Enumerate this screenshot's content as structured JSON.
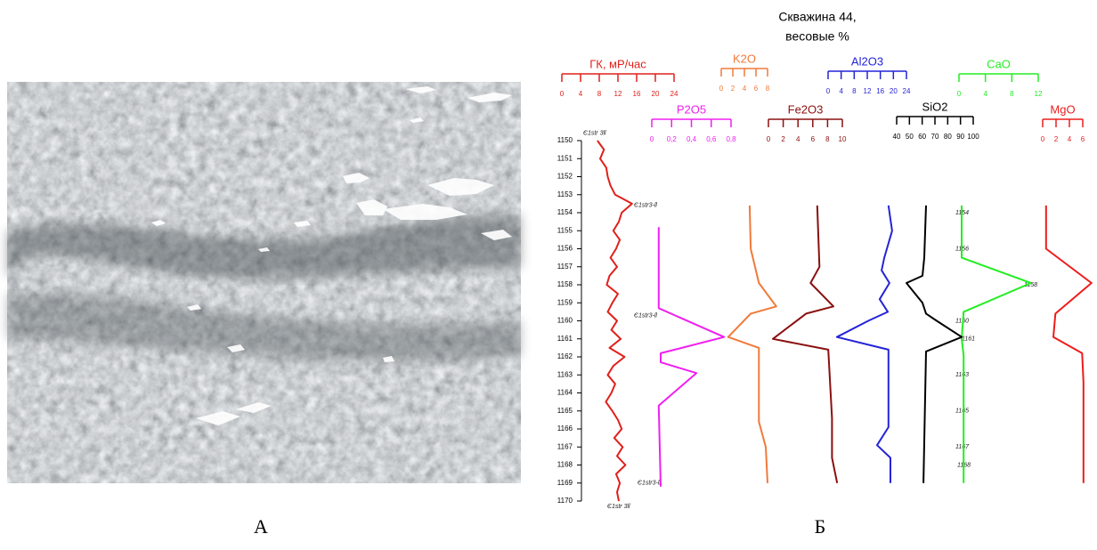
{
  "panel_labels": [
    "А",
    "Б"
  ],
  "chart_data": {
    "type": "well-log",
    "title": "Скважина 44,",
    "subtitle": "весовые %",
    "ylim": [
      1150,
      1170
    ],
    "yticks": [
      1150,
      1151,
      1152,
      1153,
      1154,
      1155,
      1156,
      1157,
      1158,
      1159,
      1160,
      1161,
      1162,
      1163,
      1164,
      1165,
      1166,
      1167,
      1168,
      1169,
      1170
    ],
    "annotations": [
      {
        "text": "Є1str 3ll",
        "depth": 1149.6
      },
      {
        "text": "Є1str3-ll",
        "depth": 1153.6
      },
      {
        "text": "Є1str3-ll",
        "depth": 1159.7
      },
      {
        "text": "Є1str3-ll",
        "depth": 1169.0
      },
      {
        "text": "Є1str 3ll",
        "depth": 1170.3
      }
    ],
    "sample_depths": [
      1154,
      1156,
      1158,
      1160,
      1161,
      1163,
      1165,
      1167,
      1168
    ],
    "series": [
      {
        "name": "ГК, мР/час",
        "color": "#e0201a",
        "xlim": [
          0,
          24
        ],
        "xticks": [
          0,
          4,
          8,
          12,
          16,
          20,
          24
        ],
        "depths": [
          1150,
          1150.5,
          1151,
          1151.5,
          1152,
          1152.5,
          1153,
          1153.5,
          1154,
          1154.5,
          1155,
          1155.5,
          1156,
          1156.5,
          1157,
          1157.5,
          1158,
          1158.5,
          1159,
          1159.5,
          1160,
          1160.5,
          1161,
          1161.5,
          1162,
          1162.5,
          1163,
          1163.5,
          1164,
          1164.5,
          1165,
          1165.5,
          1166,
          1166.5,
          1167,
          1167.5,
          1168,
          1168.5,
          1169,
          1169.5,
          1170
        ],
        "values": [
          7.6,
          9.0,
          8.2,
          9.5,
          9.8,
          10.4,
          11.4,
          15.0,
          12.8,
          12.2,
          11.0,
          12.4,
          11.6,
          10.4,
          11.8,
          10.2,
          9.6,
          12.0,
          10.8,
          9.8,
          11.8,
          10.6,
          12.6,
          10.2,
          13.4,
          11.0,
          9.8,
          11.4,
          10.6,
          9.4,
          10.8,
          12.0,
          12.8,
          11.2,
          13.0,
          11.8,
          13.6,
          11.6,
          12.4,
          11.8,
          12.2
        ]
      },
      {
        "name": "K2O",
        "color": "#f07a3a",
        "xlim": [
          0,
          8
        ],
        "xticks": [
          0,
          2,
          4,
          6,
          8
        ],
        "depths": [
          1153.6,
          1156,
          1157.9,
          1159.2,
          1159.6,
          1160.9,
          1161.5,
          1165.6,
          1167,
          1169
        ],
        "values": [
          4.9,
          5.1,
          6.5,
          9.5,
          5.1,
          1.2,
          6.5,
          6.5,
          7.7,
          8.0
        ]
      },
      {
        "name": "Al2O3",
        "color": "#2424d8",
        "xlim": [
          0,
          24
        ],
        "xticks": [
          0,
          4,
          8,
          12,
          16,
          20,
          24
        ],
        "depths": [
          1153.6,
          1155,
          1156.5,
          1157.2,
          1157.9,
          1158.8,
          1159.5,
          1160,
          1160.9,
          1161.6,
          1165.9,
          1166.9,
          1167.6,
          1169
        ],
        "values": [
          18.5,
          19.6,
          17.2,
          16.4,
          18.8,
          15.8,
          18.3,
          12.3,
          2.7,
          18.5,
          18.5,
          15,
          19.1,
          19.1
        ]
      },
      {
        "name": "CaO",
        "color": "#22ee22",
        "xlim": [
          0,
          12
        ],
        "xticks": [
          0,
          4,
          8,
          12
        ],
        "depths": [
          1153.6,
          1156.5,
          1157.9,
          1159.5,
          1161,
          1161.9,
          1169
        ],
        "values": [
          0.4,
          0.4,
          10.9,
          0.7,
          0.4,
          0.7,
          0.7
        ]
      },
      {
        "name": "P2O5",
        "color": "#f020f0",
        "xlim": [
          0,
          0.8
        ],
        "xticks": [
          0,
          {
            "value": 0.2,
            "label": "0,2"
          },
          {
            "value": 0.4,
            "label": "0,4"
          },
          {
            "value": 0.6,
            "label": "0,6"
          },
          {
            "value": 0.8,
            "label": "0,8"
          }
        ],
        "depths": [
          1154.8,
          1159.3,
          1160.9,
          1161.8,
          1162.3,
          1162.9,
          1164.7,
          1169.2
        ],
        "values": [
          0.07,
          0.07,
          0.73,
          0.09,
          0.09,
          0.45,
          0.07,
          0.09
        ]
      },
      {
        "name": "Fe2O3",
        "color": "#8b1010",
        "xlim": [
          0,
          10
        ],
        "xticks": [
          0,
          2,
          4,
          6,
          8,
          10
        ],
        "depths": [
          1153.6,
          1157,
          1157.9,
          1159.2,
          1159.6,
          1161,
          1161.6,
          1165.4,
          1167.6,
          1169
        ],
        "values": [
          6.6,
          6.9,
          5.7,
          8.8,
          5.1,
          0.6,
          8.1,
          8.6,
          8.6,
          9.3
        ]
      },
      {
        "name": "SiO2",
        "color": "#000000",
        "xlim": [
          40,
          100
        ],
        "xticks": [
          40,
          50,
          60,
          70,
          80,
          90,
          100
        ],
        "depths": [
          1153.6,
          1156.5,
          1157.5,
          1157.9,
          1159,
          1159.6,
          1160,
          1160.9,
          1161.7,
          1169
        ],
        "values": [
          63,
          61.6,
          60.2,
          47.7,
          60.2,
          63,
          71.4,
          91,
          63,
          61
        ]
      },
      {
        "name": "MgO",
        "color": "#ee1c1c",
        "xlim": [
          0,
          6
        ],
        "xticks": [
          0,
          2,
          4,
          6
        ],
        "depths": [
          1153.6,
          1156,
          1157.9,
          1159.6,
          1160.9,
          1161.8,
          1163.4,
          1169
        ],
        "values": [
          0.5,
          0.5,
          7.3,
          1.9,
          1.6,
          5.9,
          6.1,
          6.1
        ]
      }
    ]
  }
}
